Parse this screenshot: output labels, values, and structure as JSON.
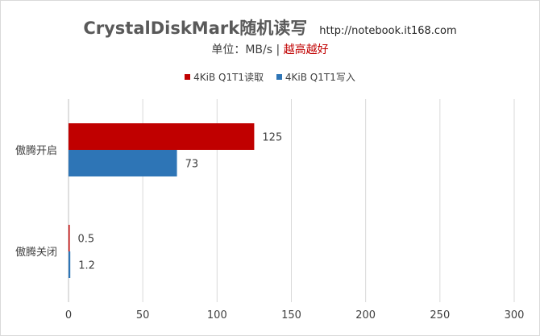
{
  "header": {
    "title": "CrystalDiskMark随机读写",
    "url": "http://notebook.it168.com",
    "subtitle_unit": "单位：MB/s | ",
    "subtitle_highlight": "越高越好"
  },
  "chart_data": {
    "type": "bar",
    "orientation": "horizontal",
    "categories": [
      "傲腾开启",
      "傲腾关闭"
    ],
    "series": [
      {
        "name": "4KiB Q1T1读取",
        "color": "#c00000",
        "values": [
          125,
          0.5
        ]
      },
      {
        "name": "4KiB Q1T1写入",
        "color": "#2e75b6",
        "values": [
          73,
          1.2
        ]
      }
    ],
    "x_ticks": [
      "0",
      "50",
      "100",
      "150",
      "200",
      "250",
      "300"
    ],
    "xlim": [
      0,
      300
    ],
    "grid": true,
    "legend_position": "top"
  }
}
